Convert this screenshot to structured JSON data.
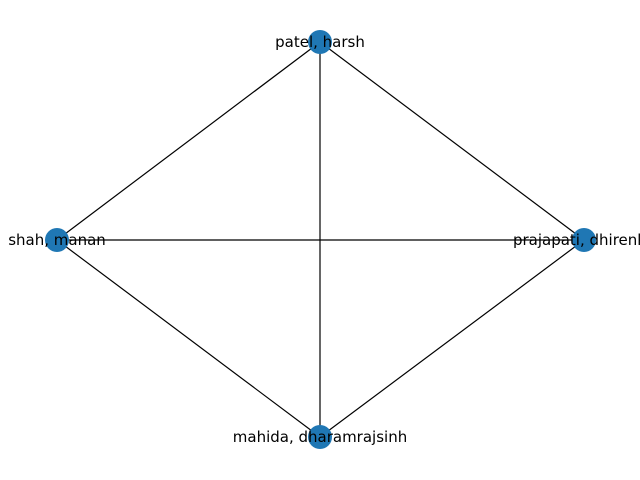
{
  "graph": {
    "node_color": "#1f77b4",
    "edge_color": "#000000",
    "nodes": [
      {
        "id": "n1",
        "label": "patel, harsh"
      },
      {
        "id": "n2",
        "label": "shah, manan"
      },
      {
        "id": "n3",
        "label": "prajapati, dhirenku"
      },
      {
        "id": "n4",
        "label": "mahida, dharamrajsinh"
      }
    ],
    "edges": [
      [
        "n1",
        "n2"
      ],
      [
        "n1",
        "n3"
      ],
      [
        "n1",
        "n4"
      ],
      [
        "n2",
        "n3"
      ],
      [
        "n2",
        "n4"
      ],
      [
        "n3",
        "n4"
      ]
    ]
  }
}
